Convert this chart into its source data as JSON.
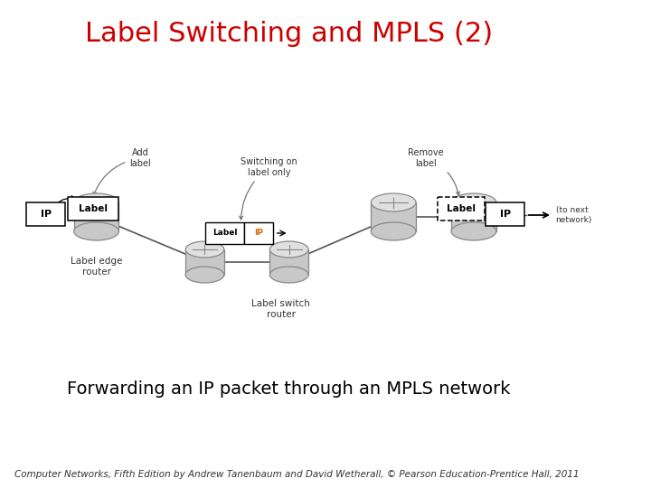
{
  "title": "Label Switching and MPLS (2)",
  "title_color": "#CC0000",
  "title_fontsize": 22,
  "subtitle": "Forwarding an IP packet through an MPLS network",
  "subtitle_color": "#000000",
  "subtitle_fontsize": 14,
  "footer": "Computer Networks, Fifth Edition by Andrew Tanenbaum and David Wetherall, © Pearson Education-Prentice Hall, 2011",
  "footer_fontsize": 7.5,
  "bg_color": "#ffffff",
  "router_color": "#c8c8c8",
  "router_edge": "#888888",
  "line_color": "#555555",
  "text_color": "#333333"
}
